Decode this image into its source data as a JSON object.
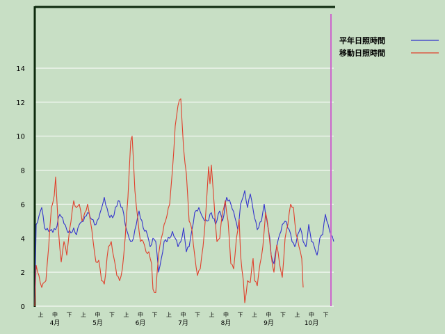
{
  "chart_data": {
    "type": "line",
    "xlabel": "",
    "ylabel": "",
    "ylim": [
      0,
      17.6
    ],
    "yticks": [
      0,
      2,
      4,
      6,
      8,
      10,
      12,
      14
    ],
    "grid": true,
    "legend_position": "top-right",
    "x_sub_labels": [
      "上",
      "中",
      "下",
      "上",
      "中",
      "下",
      "上",
      "中",
      "下",
      "上",
      "中",
      "下",
      "上",
      "中",
      "下",
      "上",
      "中",
      "下",
      "上",
      "中",
      "下"
    ],
    "x_month_labels": [
      "4月",
      "5月",
      "6月",
      "7月",
      "8月",
      "9月",
      "10月"
    ],
    "x_index_range": [
      0,
      215
    ],
    "marker_index": 213,
    "colors": {
      "background": "#c8dfc5",
      "grid": "#ffffff",
      "marker": "#cc66cc"
    },
    "series": [
      {
        "name": "平年日照時間",
        "color": "#3333cc",
        "keypoints": [
          [
            0,
            0
          ],
          [
            1,
            4.8
          ],
          [
            3,
            5.3
          ],
          [
            5,
            5.8
          ],
          [
            7,
            4.6
          ],
          [
            10,
            4.4
          ],
          [
            15,
            4.5
          ],
          [
            18,
            5.4
          ],
          [
            20,
            5.2
          ],
          [
            23,
            4.5
          ],
          [
            26,
            4.3
          ],
          [
            28,
            4.6
          ],
          [
            30,
            4.2
          ],
          [
            32,
            4.8
          ],
          [
            35,
            5.0
          ],
          [
            38,
            5.5
          ],
          [
            40,
            5.2
          ],
          [
            44,
            4.8
          ],
          [
            47,
            5.5
          ],
          [
            50,
            6.4
          ],
          [
            53,
            5.4
          ],
          [
            56,
            5.2
          ],
          [
            60,
            6.2
          ],
          [
            63,
            5.8
          ],
          [
            66,
            4.5
          ],
          [
            69,
            3.8
          ],
          [
            71,
            4.0
          ],
          [
            73,
            4.8
          ],
          [
            75,
            5.6
          ],
          [
            78,
            4.6
          ],
          [
            81,
            4.2
          ],
          [
            83,
            3.5
          ],
          [
            85,
            4.0
          ],
          [
            87,
            3.8
          ],
          [
            89,
            2.0
          ],
          [
            91,
            2.8
          ],
          [
            93,
            3.8
          ],
          [
            97,
            4.0
          ],
          [
            99,
            4.4
          ],
          [
            101,
            4.0
          ],
          [
            103,
            3.5
          ],
          [
            105,
            3.8
          ],
          [
            107,
            4.6
          ],
          [
            109,
            3.2
          ],
          [
            111,
            3.5
          ],
          [
            113,
            4.5
          ],
          [
            115,
            5.5
          ],
          [
            118,
            5.8
          ],
          [
            121,
            5.2
          ],
          [
            124,
            5.0
          ],
          [
            127,
            5.5
          ],
          [
            130,
            4.8
          ],
          [
            133,
            5.6
          ],
          [
            135,
            5.0
          ],
          [
            138,
            6.4
          ],
          [
            141,
            6.0
          ],
          [
            144,
            5.2
          ],
          [
            146,
            4.5
          ],
          [
            148,
            6.0
          ],
          [
            151,
            6.8
          ],
          [
            153,
            5.8
          ],
          [
            155,
            6.6
          ],
          [
            158,
            5.2
          ],
          [
            160,
            4.5
          ],
          [
            163,
            5.0
          ],
          [
            165,
            6.0
          ],
          [
            167,
            5.0
          ],
          [
            169,
            4.0
          ],
          [
            170,
            3.0
          ],
          [
            172,
            2.5
          ],
          [
            174,
            3.5
          ],
          [
            176,
            4.2
          ],
          [
            178,
            4.8
          ],
          [
            180,
            5.0
          ],
          [
            183,
            4.5
          ],
          [
            185,
            3.8
          ],
          [
            187,
            3.5
          ],
          [
            189,
            4.2
          ],
          [
            191,
            4.6
          ],
          [
            193,
            3.8
          ],
          [
            195,
            3.5
          ],
          [
            197,
            4.8
          ],
          [
            199,
            3.8
          ],
          [
            201,
            3.5
          ],
          [
            203,
            3.0
          ],
          [
            205,
            4.0
          ],
          [
            207,
            4.2
          ],
          [
            209,
            5.4
          ],
          [
            211,
            4.8
          ],
          [
            213,
            4.2
          ],
          [
            215,
            3.8
          ]
        ]
      },
      {
        "name": "移動日照時間",
        "color": "#e0402c",
        "keypoints": [
          [
            0,
            0
          ],
          [
            1,
            2.4
          ],
          [
            3,
            1.8
          ],
          [
            5,
            1.1
          ],
          [
            7,
            1.4
          ],
          [
            8,
            1.5
          ],
          [
            10,
            3.5
          ],
          [
            12,
            5.8
          ],
          [
            14,
            6.5
          ],
          [
            15,
            7.6
          ],
          [
            17,
            4.5
          ],
          [
            19,
            2.6
          ],
          [
            21,
            3.8
          ],
          [
            23,
            3.0
          ],
          [
            25,
            4.5
          ],
          [
            28,
            6.2
          ],
          [
            30,
            5.8
          ],
          [
            32,
            6.0
          ],
          [
            34,
            5.0
          ],
          [
            36,
            5.5
          ],
          [
            38,
            6.0
          ],
          [
            40,
            5.0
          ],
          [
            42,
            3.8
          ],
          [
            44,
            2.6
          ],
          [
            46,
            2.7
          ],
          [
            48,
            1.5
          ],
          [
            50,
            1.3
          ],
          [
            53,
            3.5
          ],
          [
            55,
            3.8
          ],
          [
            57,
            2.8
          ],
          [
            59,
            1.8
          ],
          [
            61,
            1.5
          ],
          [
            63,
            2.2
          ],
          [
            65,
            4.0
          ],
          [
            67,
            6.4
          ],
          [
            69,
            9.7
          ],
          [
            70,
            10.0
          ],
          [
            72,
            6.8
          ],
          [
            74,
            5.2
          ],
          [
            76,
            3.8
          ],
          [
            78,
            3.8
          ],
          [
            80,
            3.2
          ],
          [
            82,
            3.2
          ],
          [
            84,
            2.5
          ],
          [
            85,
            1.0
          ],
          [
            87,
            0.8
          ],
          [
            89,
            3.0
          ],
          [
            91,
            4.0
          ],
          [
            93,
            4.8
          ],
          [
            95,
            5.3
          ],
          [
            97,
            6.0
          ],
          [
            99,
            8.0
          ],
          [
            101,
            10.6
          ],
          [
            103,
            11.8
          ],
          [
            105,
            12.2
          ],
          [
            107,
            9.3
          ],
          [
            109,
            7.8
          ],
          [
            111,
            5.0
          ],
          [
            113,
            4.5
          ],
          [
            115,
            3.0
          ],
          [
            117,
            1.8
          ],
          [
            119,
            2.2
          ],
          [
            121,
            3.5
          ],
          [
            123,
            5.5
          ],
          [
            125,
            8.2
          ],
          [
            126,
            7.2
          ],
          [
            127,
            8.3
          ],
          [
            129,
            6.0
          ],
          [
            131,
            3.8
          ],
          [
            133,
            4.0
          ],
          [
            135,
            5.5
          ],
          [
            137,
            6.2
          ],
          [
            139,
            5.0
          ],
          [
            141,
            2.5
          ],
          [
            143,
            2.2
          ],
          [
            145,
            4.0
          ],
          [
            147,
            5.1
          ],
          [
            148,
            3.0
          ],
          [
            150,
            1.5
          ],
          [
            151,
            0.2
          ],
          [
            153,
            1.5
          ],
          [
            155,
            1.4
          ],
          [
            157,
            2.8
          ],
          [
            158,
            1.5
          ],
          [
            160,
            1.2
          ],
          [
            162,
            2.5
          ],
          [
            164,
            3.5
          ],
          [
            166,
            5.5
          ],
          [
            168,
            4.5
          ],
          [
            170,
            3.0
          ],
          [
            172,
            2.0
          ],
          [
            174,
            3.6
          ],
          [
            176,
            2.5
          ],
          [
            178,
            1.7
          ],
          [
            180,
            4.0
          ],
          [
            182,
            4.8
          ],
          [
            184,
            6.0
          ],
          [
            186,
            5.8
          ],
          [
            188,
            4.2
          ],
          [
            190,
            3.5
          ],
          [
            192,
            2.8
          ],
          [
            193,
            1.1
          ]
        ]
      }
    ]
  }
}
